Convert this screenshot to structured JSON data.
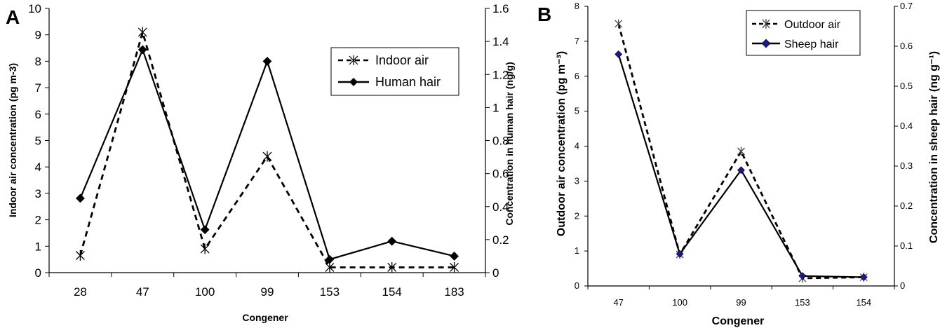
{
  "chart_data": [
    {
      "panel_label": "A",
      "type": "line",
      "categories": [
        "28",
        "47",
        "100",
        "99",
        "153",
        "154",
        "183"
      ],
      "xlabel": "Congener",
      "ylabel": "Indoor air concentration (pg m-3)",
      "y2label": "Concentration in human hair (ng/g)",
      "ylim": [
        0,
        10
      ],
      "yticks": [
        "0",
        "1",
        "2",
        "3",
        "4",
        "5",
        "6",
        "7",
        "8",
        "9",
        "10"
      ],
      "y2lim": [
        0,
        1.6
      ],
      "y2ticks": [
        "0",
        "0.2",
        "0.4",
        "0.6",
        "0.8",
        "1",
        "1.2",
        "1.4",
        "1.6"
      ],
      "grid": false,
      "legend_position": "top-right",
      "series": [
        {
          "name": "Indoor air",
          "axis": "left",
          "style": "dashed",
          "marker": "asterisk",
          "color": "#000000",
          "values": [
            0.65,
            9.1,
            0.9,
            4.4,
            0.2,
            0.2,
            0.2
          ]
        },
        {
          "name": "Human hair",
          "axis": "right",
          "style": "solid",
          "marker": "diamond",
          "color": "#000000",
          "values": [
            0.45,
            1.35,
            0.26,
            1.28,
            0.08,
            0.19,
            0.1
          ]
        }
      ]
    },
    {
      "panel_label": "B",
      "type": "line",
      "categories": [
        "47",
        "100",
        "99",
        "153",
        "154"
      ],
      "xlabel": "Congener",
      "ylabel": "Outdoor air concentration (pg m⁻³)",
      "y2label": "Concentration in sheep hair (ng g⁻¹)",
      "ylim": [
        0,
        8
      ],
      "yticks": [
        "0",
        "1",
        "2",
        "3",
        "4",
        "5",
        "6",
        "7",
        "8"
      ],
      "y2lim": [
        0,
        0.7
      ],
      "y2ticks": [
        "0",
        "0.1",
        "0.2",
        "0.3",
        "0.4",
        "0.5",
        "0.6",
        "0.7"
      ],
      "grid": false,
      "legend_position": "top-right",
      "series": [
        {
          "name": "Outdoor air",
          "axis": "left",
          "style": "dashed",
          "marker": "asterisk",
          "color": "#000000",
          "values": [
            7.5,
            0.9,
            3.85,
            0.22,
            0.25
          ]
        },
        {
          "name": "Sheep hair",
          "axis": "right",
          "style": "solid",
          "marker": "diamond",
          "color": "#000000",
          "marker_color": "#1a1a8c",
          "values": [
            0.58,
            0.08,
            0.29,
            0.025,
            0.022
          ]
        }
      ]
    }
  ]
}
